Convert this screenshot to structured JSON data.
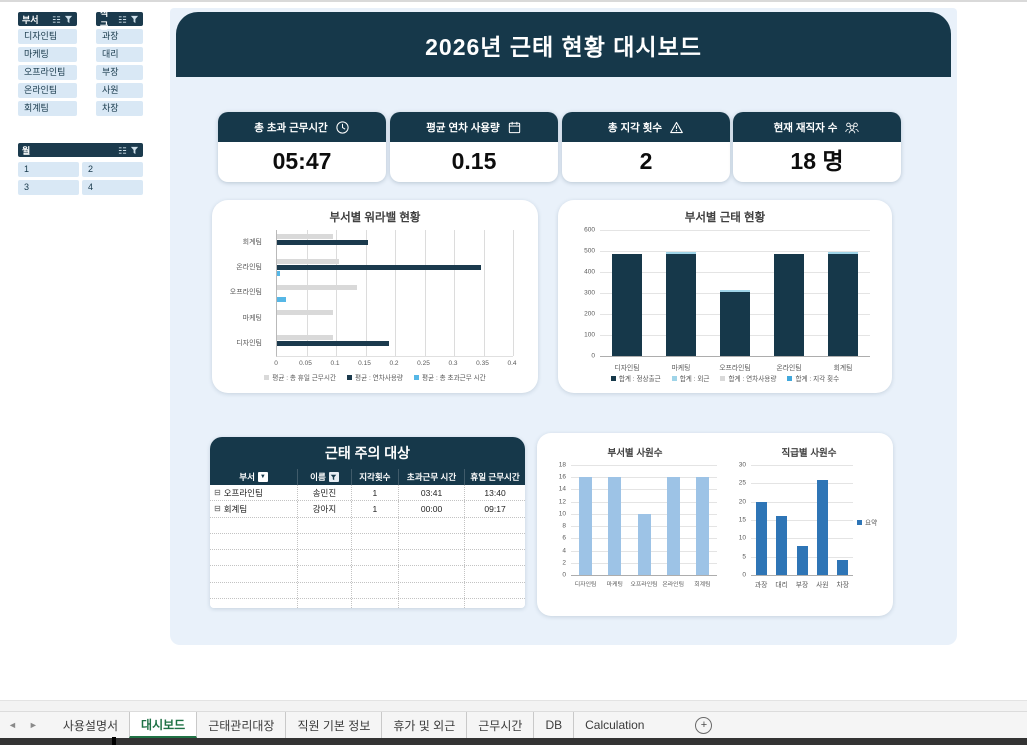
{
  "header": {
    "title": "2026년 근태 현황 대시보드"
  },
  "slicers": [
    {
      "title": "부서",
      "items": [
        "디자인팀",
        "마케팅",
        "오프라인팀",
        "온라인팀",
        "회계팀"
      ]
    },
    {
      "title": "직급",
      "items": [
        "과장",
        "대리",
        "부장",
        "사원",
        "차장"
      ]
    },
    {
      "title": "월",
      "items": [
        "1",
        "2",
        "3",
        "4"
      ]
    }
  ],
  "kpis": [
    {
      "label": "총 초과 근무시간",
      "value": "05:47",
      "icon": "clock-icon"
    },
    {
      "label": "평균 연차 사용량",
      "value": "0.15",
      "icon": "calendar-icon"
    },
    {
      "label": "총 지각 횟수",
      "value": "2",
      "icon": "warning-icon"
    },
    {
      "label": "현재 재직자 수",
      "value": "18 명",
      "icon": "people-icon"
    }
  ],
  "chart_data": [
    {
      "type": "bar",
      "orientation": "horizontal",
      "title": "부서별 워라밸 현황",
      "categories": [
        "회계팀",
        "온라인팀",
        "오프라인팀",
        "마케팅",
        "디자인팀"
      ],
      "series": [
        {
          "name": "평균 : 총 휴일 근무시간",
          "color": "#d9d9d9",
          "values": [
            0.095,
            0.105,
            0.135,
            0.095,
            0.095
          ]
        },
        {
          "name": "평균 : 연차사용량",
          "color": "#1b3a4d",
          "values": [
            0.155,
            0.345,
            0,
            0,
            0.19
          ]
        },
        {
          "name": "평균 : 총 초과근무 시간",
          "color": "#56b7e6",
          "values": [
            0,
            0.005,
            0.015,
            0,
            0
          ]
        }
      ],
      "xlim": [
        0,
        0.4
      ],
      "xtick_step": 0.05,
      "grid": true,
      "legend_position": "bottom"
    },
    {
      "type": "bar",
      "stacked": true,
      "title": "부서별 근태 현황",
      "categories": [
        "디자인팀",
        "마케팅",
        "오프라인팀",
        "온라인팀",
        "회계팀"
      ],
      "series": [
        {
          "name": "합계 : 정상출근",
          "color": "#16384a",
          "values": [
            487,
            487,
            305,
            487,
            488
          ]
        },
        {
          "name": "합계 : 외근",
          "color": "#9fd4e8",
          "values": [
            0,
            4,
            8,
            0,
            8
          ]
        },
        {
          "name": "합계 : 연차사용량",
          "color": "#d9d9d9",
          "values": [
            0,
            0,
            0,
            0,
            0
          ]
        },
        {
          "name": "합계 : 지각 횟수",
          "color": "#41a8dc",
          "values": [
            0,
            0,
            0,
            0,
            0
          ]
        }
      ],
      "ylim": [
        0,
        600
      ],
      "ytick_step": 100,
      "grid": true,
      "legend_position": "bottom"
    },
    {
      "type": "bar",
      "title": "부서별 사원수",
      "categories": [
        "디자인팀",
        "마케팅",
        "오프라인팀",
        "온라인팀",
        "회계팀"
      ],
      "values": [
        16,
        16,
        10,
        16,
        16
      ],
      "bar_color": "#9dc3e6",
      "ylim": [
        0,
        18
      ],
      "ytick_step": 2,
      "grid": true
    },
    {
      "type": "bar",
      "title": "직급별 사원수",
      "categories": [
        "과장",
        "대리",
        "부장",
        "사원",
        "차장"
      ],
      "values": [
        20,
        16,
        8,
        26,
        4
      ],
      "bar_color": "#2e75b6",
      "ylim": [
        0,
        30
      ],
      "ytick_step": 5,
      "grid": true,
      "legend": [
        "요약"
      ],
      "legend_position": "right"
    }
  ],
  "table": {
    "title": "근태 주의 대상",
    "columns": [
      "부서",
      "이름",
      "지각횟수",
      "초과근무 시간",
      "휴일 근무시간"
    ],
    "rows": [
      {
        "dept": "오프라인팀",
        "name": "송민진",
        "late": "1",
        "overtime": "03:41",
        "holiday": "13:40"
      },
      {
        "dept": "회계팀",
        "name": "강아지",
        "late": "1",
        "overtime": "00:00",
        "holiday": "09:17"
      }
    ],
    "empty_rows": 6
  },
  "app": {
    "tabs": [
      "사용설명서",
      "대시보드",
      "근태관리대장",
      "직원 기본 정보",
      "휴가 및 외근",
      "근무시간",
      "DB",
      "Calculation"
    ],
    "active_tab": "대시보드",
    "add_sheet_label": "+"
  },
  "colors": {
    "navy": "#16384a",
    "panel_bg": "#e9f1fa",
    "slicer_item_bg": "#d9e8f5",
    "series_gray": "#d9d9d9",
    "series_light_blue": "#9fd4e8",
    "series_blue": "#41a8dc",
    "bar_light_blue": "#9dc3e6",
    "bar_blue": "#2e75b6",
    "tab_active_green": "#217346"
  }
}
